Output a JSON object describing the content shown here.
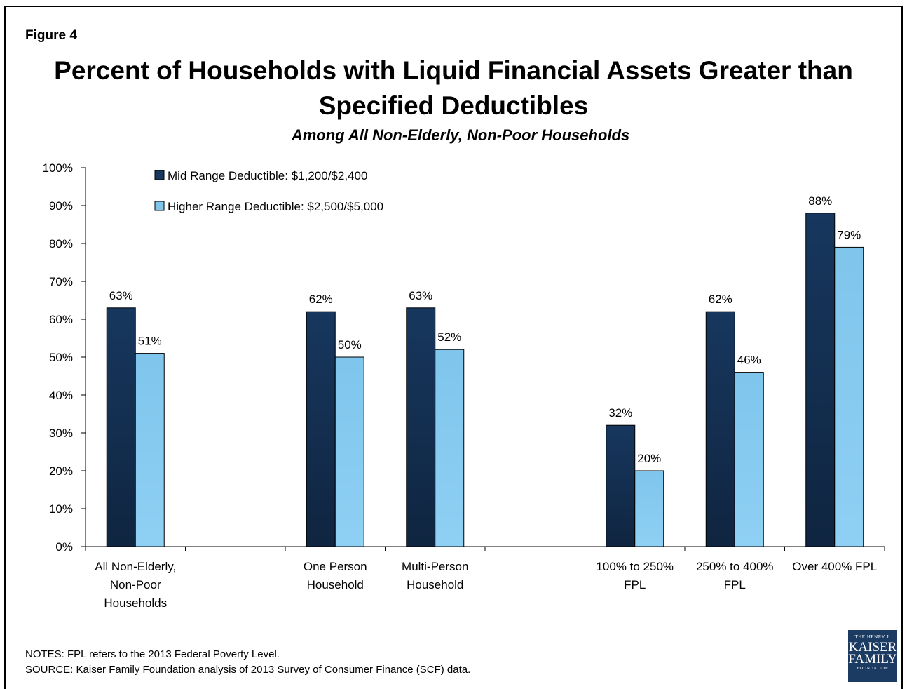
{
  "figure_label": "Figure 4",
  "title_lines": [
    "Percent of Households with Liquid Financial Assets Greater than",
    "Specified Deductibles"
  ],
  "subtitle": "Among All Non-Elderly, Non-Poor Households",
  "notes": "NOTES: FPL refers to the 2013 Federal Poverty Level.",
  "source": "SOURCE: Kaiser Family Foundation analysis of 2013 Survey of Consumer Finance (SCF) data.",
  "logo": {
    "line1": "THE HENRY J.",
    "line2": "KAISER",
    "line3": "FAMILY",
    "line4": "FOUNDATION",
    "color": "#1c3b63"
  },
  "chart_data": {
    "type": "bar",
    "categories": [
      [
        "All Non-Elderly,",
        "Non-Poor",
        "Households"
      ],
      [
        "One Person",
        "Household"
      ],
      [
        "Multi-Person",
        "Household"
      ],
      [
        "100% to 250%",
        "FPL"
      ],
      [
        "250% to 400%",
        "FPL"
      ],
      [
        "Over 400% FPL"
      ]
    ],
    "category_slots": [
      0,
      2,
      3,
      5,
      6,
      7
    ],
    "slot_count": 8,
    "series": [
      {
        "name": "Mid Range Deductible: $1,200/$2,400",
        "values": [
          63,
          62,
          63,
          32,
          62,
          88
        ],
        "labels": [
          "63%",
          "62%",
          "63%",
          "32%",
          "62%",
          "88%"
        ],
        "color": "#17375e"
      },
      {
        "name": "Higher Range Deductible: $2,500/$5,000",
        "values": [
          51,
          50,
          52,
          20,
          46,
          79
        ],
        "labels": [
          "51%",
          "50%",
          "52%",
          "20%",
          "46%",
          "79%"
        ],
        "color": "#7fc5ec"
      }
    ],
    "ylim": [
      0,
      100
    ],
    "yticks": [
      "0%",
      "10%",
      "20%",
      "30%",
      "40%",
      "50%",
      "60%",
      "70%",
      "80%",
      "90%",
      "100%"
    ],
    "legend_position": "top-left",
    "grid": false
  }
}
